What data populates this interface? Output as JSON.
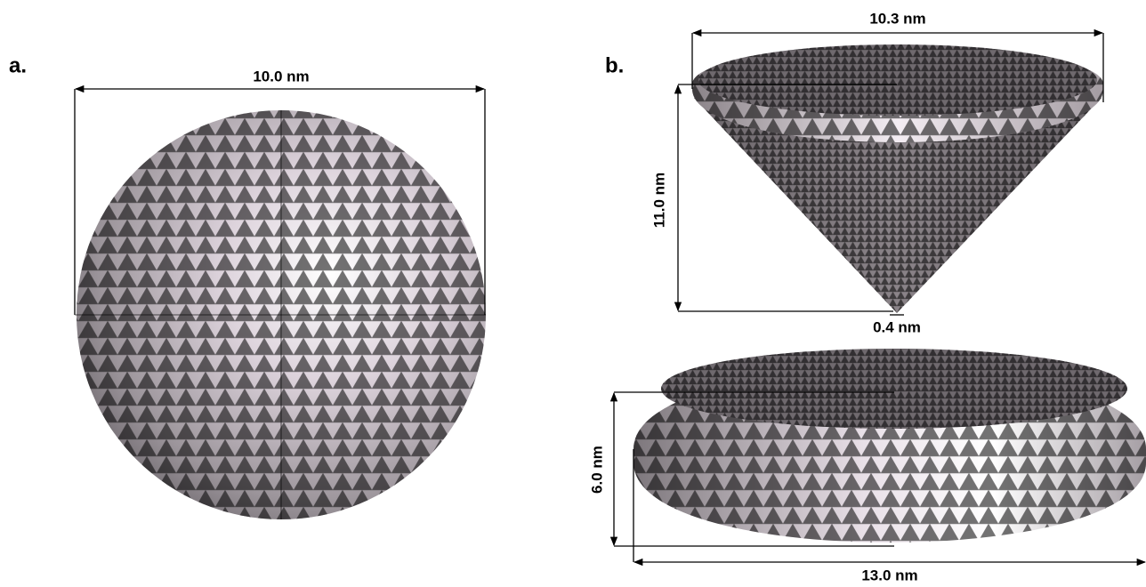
{
  "panel_a": {
    "label": "a.",
    "sphere_diameter": "10.0 nm"
  },
  "panel_b": {
    "label": "b.",
    "cone": {
      "top_diameter": "10.3 nm",
      "height": "11.0 nm",
      "tip_diameter": "0.4 nm"
    },
    "disk": {
      "height": "6.0 nm",
      "diameter": "13.0 nm"
    }
  }
}
